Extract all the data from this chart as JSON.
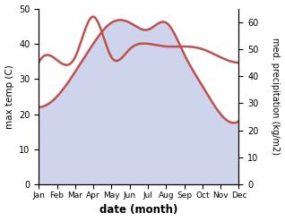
{
  "months": [
    "Jan",
    "Feb",
    "Mar",
    "Apr",
    "May",
    "Jun",
    "Jul",
    "Aug",
    "Sep",
    "Oct",
    "Nov",
    "Dec"
  ],
  "temperature": [
    22,
    25,
    32,
    40,
    46,
    46,
    44,
    46,
    37,
    28,
    20,
    18
  ],
  "precipitation": [
    45,
    46,
    47,
    62,
    47,
    50,
    52,
    51,
    51,
    50,
    47,
    45
  ],
  "temp_color": "#c0504d",
  "fill_color": "#c6cde8",
  "fill_alpha": 0.85,
  "temp_ylim": [
    0,
    50
  ],
  "precip_ylim": [
    0,
    65
  ],
  "precip_yticks": [
    0,
    10,
    20,
    30,
    40,
    50,
    60
  ],
  "temp_yticks": [
    0,
    10,
    20,
    30,
    40,
    50
  ],
  "xlabel": "date (month)",
  "ylabel_left": "max temp (C)",
  "ylabel_right": "med. precipitation (kg/m2)",
  "lw": 1.8
}
